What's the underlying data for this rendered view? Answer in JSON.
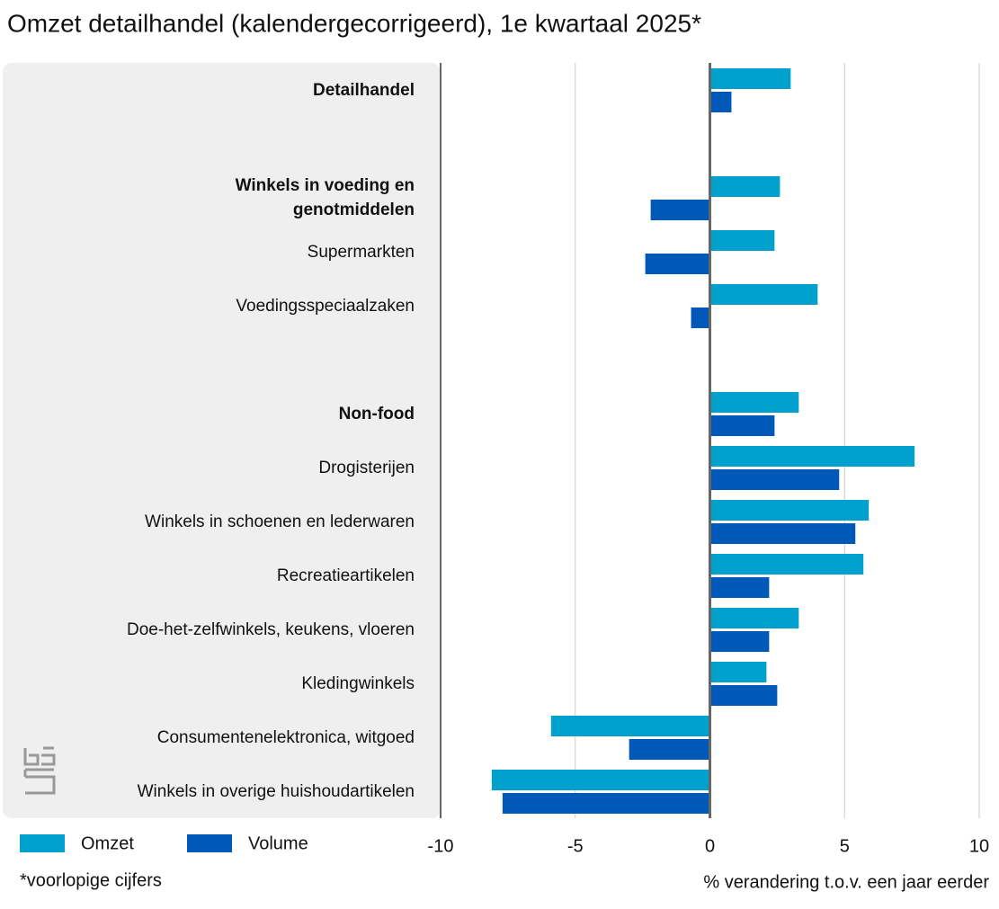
{
  "chart_data": {
    "type": "hbar",
    "title": "Omzet detailhandel (kalendergecorrigeerd), 1e kwartaal 2025*",
    "categories": [
      "Detailhandel",
      null,
      "Winkels in voeding en genotmiddelen",
      "Supermarkten",
      "Voedingsspeciaalzaken",
      null,
      "Non-food",
      "Drogisterijen",
      "Winkels in schoenen en lederwaren",
      "Recreatieartikelen",
      "Doe-het-zelfwinkels, keukens, vloeren",
      "Kledingwinkels",
      "Consumentenelektronica, witgoed",
      "Winkels in overige huishoudartikelen"
    ],
    "bold_categories": [
      0,
      2,
      6
    ],
    "series": [
      {
        "name": "Omzet",
        "color": "#00a1cd",
        "values": [
          3.0,
          null,
          2.6,
          2.4,
          4.0,
          null,
          3.3,
          7.6,
          5.9,
          5.7,
          3.3,
          2.1,
          -5.9,
          -8.1
        ]
      },
      {
        "name": "Volume",
        "color": "#0058b8",
        "values": [
          0.8,
          null,
          -2.2,
          -2.4,
          -0.7,
          null,
          2.4,
          4.8,
          5.4,
          2.2,
          2.2,
          2.5,
          -3.0,
          -7.7
        ]
      }
    ],
    "xlim": [
      -10,
      10
    ],
    "xticks": [
      -10,
      -5,
      0,
      5,
      10
    ],
    "grid": true,
    "xlabel": "% verandering t.o.v. een jaar eerder",
    "footnote": "*voorlopige cijfers"
  }
}
